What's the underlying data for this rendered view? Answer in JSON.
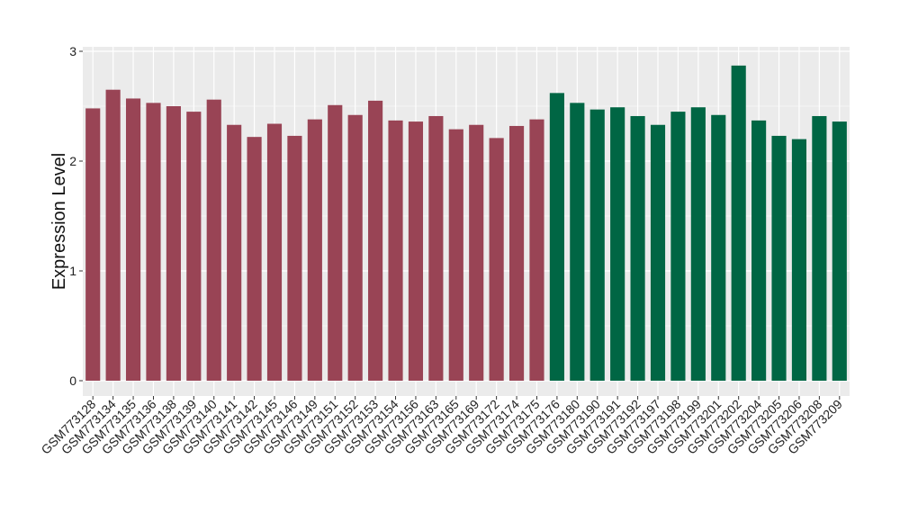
{
  "chart_data": {
    "type": "bar",
    "title": "",
    "xlabel": "",
    "ylabel": "Expression Level",
    "ylim": [
      0,
      3
    ],
    "yticks": [
      0,
      1,
      2,
      3
    ],
    "grid": true,
    "colors": {
      "group1": "#994455",
      "group2": "#006644",
      "panel": "#ebebeb",
      "gridline": "#ffffff"
    },
    "categories": [
      "GSM773128",
      "GSM773134",
      "GSM773135",
      "GSM773136",
      "GSM773138",
      "GSM773139",
      "GSM773140",
      "GSM773141",
      "GSM773142",
      "GSM773145",
      "GSM773146",
      "GSM773149",
      "GSM773151",
      "GSM773152",
      "GSM773153",
      "GSM773154",
      "GSM773156",
      "GSM773163",
      "GSM773165",
      "GSM773169",
      "GSM773172",
      "GSM773174",
      "GSM773175",
      "GSM773176",
      "GSM773180",
      "GSM773190",
      "GSM773191",
      "GSM773192",
      "GSM773197",
      "GSM773198",
      "GSM773199",
      "GSM773201",
      "GSM773202",
      "GSM773204",
      "GSM773205",
      "GSM773206",
      "GSM773208",
      "GSM773209"
    ],
    "values": [
      2.48,
      2.65,
      2.57,
      2.53,
      2.5,
      2.45,
      2.56,
      2.33,
      2.22,
      2.34,
      2.23,
      2.38,
      2.51,
      2.42,
      2.55,
      2.37,
      2.36,
      2.41,
      2.29,
      2.33,
      2.21,
      2.32,
      2.38,
      2.62,
      2.53,
      2.47,
      2.49,
      2.41,
      2.33,
      2.45,
      2.49,
      2.42,
      2.87,
      2.37,
      2.23,
      2.2,
      2.41,
      2.36
    ],
    "groups": [
      1,
      1,
      1,
      1,
      1,
      1,
      1,
      1,
      1,
      1,
      1,
      1,
      1,
      1,
      1,
      1,
      1,
      1,
      1,
      1,
      1,
      1,
      1,
      2,
      2,
      2,
      2,
      2,
      2,
      2,
      2,
      2,
      2,
      2,
      2,
      2,
      2,
      2
    ]
  }
}
